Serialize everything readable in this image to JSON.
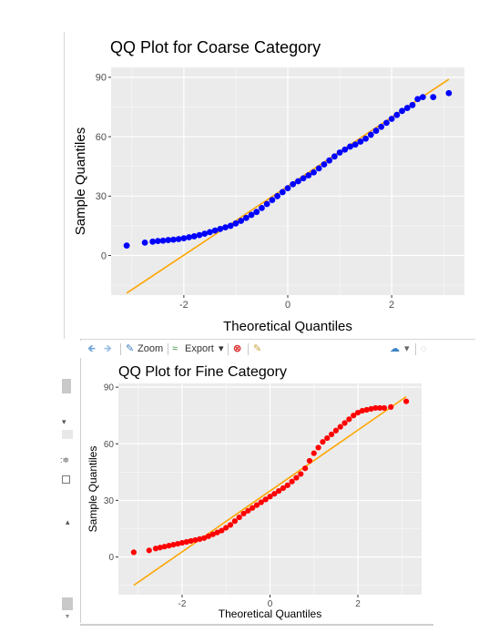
{
  "toolbar": {
    "zoom_label": "Zoom",
    "export_label": "Export",
    "export_caret": "▾"
  },
  "colors": {
    "panel_bg": "#ebebeb",
    "grid": "#ffffff",
    "ref_line": "#ffa500",
    "coarse_points": "#0000ff",
    "fine_points": "#ff0000"
  },
  "chart_data": [
    {
      "id": "coarse",
      "type": "scatter",
      "title": "QQ Plot for Coarse Category",
      "xlabel": "Theoretical Quantiles",
      "ylabel": "Sample Quantiles",
      "xlim": [
        -3.4,
        3.4
      ],
      "ylim": [
        -20,
        95
      ],
      "xticks": [
        -2,
        0,
        2
      ],
      "xtick_labels": [
        "-2",
        "0",
        "2"
      ],
      "yticks": [
        0,
        30,
        60,
        90
      ],
      "ytick_labels": [
        "0",
        "30",
        "60",
        "90"
      ],
      "grid": true,
      "point_color": "#0000ff",
      "ref_line": {
        "x": [
          -3.1,
          3.1
        ],
        "y": [
          -19,
          89
        ],
        "color": "#ffa500"
      },
      "quantiles": [
        [
          -3.1,
          5
        ],
        [
          -2.75,
          6.5
        ],
        [
          -2.6,
          7
        ],
        [
          -2.5,
          7.3
        ],
        [
          -2.4,
          7.5
        ],
        [
          -2.3,
          7.8
        ],
        [
          -2.2,
          8
        ],
        [
          -2.1,
          8.3
        ],
        [
          -2.0,
          8.7
        ],
        [
          -1.9,
          9.2
        ],
        [
          -1.8,
          9.7
        ],
        [
          -1.7,
          10.3
        ],
        [
          -1.6,
          11
        ],
        [
          -1.5,
          11.8
        ],
        [
          -1.4,
          12.6
        ],
        [
          -1.3,
          13.4
        ],
        [
          -1.2,
          14.2
        ],
        [
          -1.1,
          15
        ],
        [
          -1.0,
          16.2
        ],
        [
          -0.9,
          17.5
        ],
        [
          -0.8,
          19
        ],
        [
          -0.7,
          20.5
        ],
        [
          -0.6,
          22
        ],
        [
          -0.5,
          24
        ],
        [
          -0.4,
          26
        ],
        [
          -0.3,
          28
        ],
        [
          -0.2,
          30
        ],
        [
          -0.1,
          32
        ],
        [
          0.0,
          34
        ],
        [
          0.1,
          36
        ],
        [
          0.2,
          37.5
        ],
        [
          0.3,
          39
        ],
        [
          0.4,
          40.5
        ],
        [
          0.5,
          42
        ],
        [
          0.6,
          44
        ],
        [
          0.7,
          46
        ],
        [
          0.8,
          48
        ],
        [
          0.9,
          50
        ],
        [
          1.0,
          52
        ],
        [
          1.1,
          53.5
        ],
        [
          1.2,
          55
        ],
        [
          1.3,
          56
        ],
        [
          1.4,
          57.5
        ],
        [
          1.5,
          59
        ],
        [
          1.6,
          61
        ],
        [
          1.7,
          63
        ],
        [
          1.8,
          65
        ],
        [
          1.9,
          67
        ],
        [
          2.0,
          69
        ],
        [
          2.1,
          71
        ],
        [
          2.2,
          73
        ],
        [
          2.3,
          74.5
        ],
        [
          2.4,
          76
        ],
        [
          2.5,
          79
        ],
        [
          2.6,
          80
        ],
        [
          2.8,
          80
        ],
        [
          3.1,
          82
        ]
      ]
    },
    {
      "id": "fine",
      "type": "scatter",
      "title": "QQ Plot for Fine Category",
      "xlabel": "Theoretical Quantiles",
      "ylabel": "Sample Quantiles",
      "xlim": [
        -3.45,
        3.45
      ],
      "ylim": [
        -20,
        92
      ],
      "xticks": [
        -2,
        0,
        2
      ],
      "xtick_labels": [
        "-2",
        "0",
        "2"
      ],
      "yticks": [
        0,
        30,
        60,
        90
      ],
      "ytick_labels": [
        "0",
        "30",
        "60",
        "90"
      ],
      "grid": true,
      "point_color": "#ff0000",
      "ref_line": {
        "x": [
          -3.1,
          3.1
        ],
        "y": [
          -15,
          85
        ],
        "color": "#ffa500"
      },
      "quantiles": [
        [
          -3.1,
          2.5
        ],
        [
          -2.75,
          3.5
        ],
        [
          -2.6,
          4.5
        ],
        [
          -2.5,
          5
        ],
        [
          -2.4,
          5.5
        ],
        [
          -2.3,
          6
        ],
        [
          -2.2,
          6.5
        ],
        [
          -2.1,
          7
        ],
        [
          -2.0,
          7.5
        ],
        [
          -1.9,
          8
        ],
        [
          -1.8,
          8.5
        ],
        [
          -1.7,
          9
        ],
        [
          -1.6,
          9.5
        ],
        [
          -1.5,
          10
        ],
        [
          -1.4,
          11
        ],
        [
          -1.3,
          12
        ],
        [
          -1.2,
          13
        ],
        [
          -1.1,
          14
        ],
        [
          -1.0,
          15.5
        ],
        [
          -0.9,
          17
        ],
        [
          -0.8,
          19
        ],
        [
          -0.7,
          21
        ],
        [
          -0.6,
          23
        ],
        [
          -0.5,
          24.5
        ],
        [
          -0.4,
          26
        ],
        [
          -0.3,
          27.5
        ],
        [
          -0.2,
          29
        ],
        [
          -0.1,
          30.5
        ],
        [
          0.0,
          32
        ],
        [
          0.1,
          33.5
        ],
        [
          0.2,
          35
        ],
        [
          0.3,
          36.5
        ],
        [
          0.4,
          38
        ],
        [
          0.5,
          40
        ],
        [
          0.6,
          42
        ],
        [
          0.7,
          44
        ],
        [
          0.8,
          47
        ],
        [
          0.9,
          51
        ],
        [
          1.0,
          55
        ],
        [
          1.1,
          58
        ],
        [
          1.2,
          61
        ],
        [
          1.3,
          63
        ],
        [
          1.4,
          65
        ],
        [
          1.5,
          67
        ],
        [
          1.6,
          69
        ],
        [
          1.7,
          71
        ],
        [
          1.8,
          73
        ],
        [
          1.9,
          75
        ],
        [
          2.0,
          76.5
        ],
        [
          2.1,
          77.5
        ],
        [
          2.2,
          78
        ],
        [
          2.3,
          78.5
        ],
        [
          2.4,
          79
        ],
        [
          2.5,
          79
        ],
        [
          2.6,
          79
        ],
        [
          2.75,
          79.5
        ],
        [
          3.1,
          82.5
        ]
      ]
    }
  ]
}
